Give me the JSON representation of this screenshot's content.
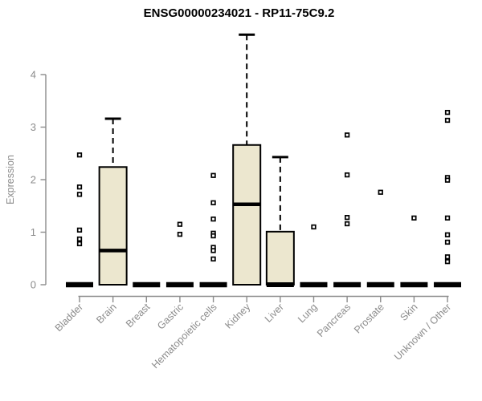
{
  "chart_data": {
    "type": "boxplot",
    "title": "ENSG00000234021 - RP11-75C9.2",
    "ylabel": "Expression",
    "xlabel": "",
    "ylim": [
      0,
      4.9
    ],
    "yticks": [
      0,
      1,
      2,
      3,
      4
    ],
    "grid": false,
    "legend": "none",
    "colors": {
      "box_fill": "#ece7cf",
      "box_stroke": "#000000",
      "median": "#000000",
      "axis": "#8c8c8c",
      "background": "#ffffff"
    },
    "categories": [
      "Bladder",
      "Brain",
      "Breast",
      "Gastric",
      "Hematopoietic cells",
      "Kidney",
      "Liver",
      "Lung",
      "Pancreas",
      "Prostate",
      "Skin",
      "Unknown / Other"
    ],
    "series": [
      {
        "category": "Bladder",
        "q1": 0,
        "median": 0,
        "q3": 0,
        "whisker_low": 0,
        "whisker_high": 0,
        "outliers": [
          2.47,
          1.86,
          1.72,
          1.04,
          0.87,
          0.78
        ]
      },
      {
        "category": "Brain",
        "q1": 0,
        "median": 0.65,
        "q3": 2.24,
        "whisker_low": 0,
        "whisker_high": 3.16,
        "outliers": []
      },
      {
        "category": "Breast",
        "q1": 0,
        "median": 0,
        "q3": 0,
        "whisker_low": 0,
        "whisker_high": 0,
        "outliers": []
      },
      {
        "category": "Gastric",
        "q1": 0,
        "median": 0,
        "q3": 0,
        "whisker_low": 0,
        "whisker_high": 0,
        "outliers": [
          1.15,
          0.96
        ]
      },
      {
        "category": "Hematopoietic cells",
        "q1": 0,
        "median": 0,
        "q3": 0,
        "whisker_low": 0,
        "whisker_high": 0,
        "outliers": [
          2.08,
          1.56,
          1.25,
          0.98,
          0.93,
          0.71,
          0.65,
          0.49
        ]
      },
      {
        "category": "Kidney",
        "q1": 0,
        "median": 1.53,
        "q3": 2.66,
        "whisker_low": 0,
        "whisker_high": 4.76,
        "outliers": []
      },
      {
        "category": "Liver",
        "q1": 0,
        "median": 0,
        "q3": 1.01,
        "whisker_low": 0,
        "whisker_high": 2.43,
        "outliers": []
      },
      {
        "category": "Lung",
        "q1": 0,
        "median": 0,
        "q3": 0,
        "whisker_low": 0,
        "whisker_high": 0,
        "outliers": [
          1.1
        ]
      },
      {
        "category": "Pancreas",
        "q1": 0,
        "median": 0,
        "q3": 0,
        "whisker_low": 0,
        "whisker_high": 0,
        "outliers": [
          2.85,
          2.09,
          1.28,
          1.16
        ]
      },
      {
        "category": "Prostate",
        "q1": 0,
        "median": 0,
        "q3": 0,
        "whisker_low": 0,
        "whisker_high": 0,
        "outliers": [
          1.76
        ]
      },
      {
        "category": "Skin",
        "q1": 0,
        "median": 0,
        "q3": 0,
        "whisker_low": 0,
        "whisker_high": 0,
        "outliers": [
          1.27
        ]
      },
      {
        "category": "Unknown / Other",
        "q1": 0,
        "median": 0,
        "q3": 0,
        "whisker_low": 0,
        "whisker_high": 0,
        "outliers": [
          3.28,
          3.13,
          2.04,
          1.99,
          1.27,
          0.95,
          0.81,
          0.53,
          0.44
        ]
      }
    ]
  }
}
